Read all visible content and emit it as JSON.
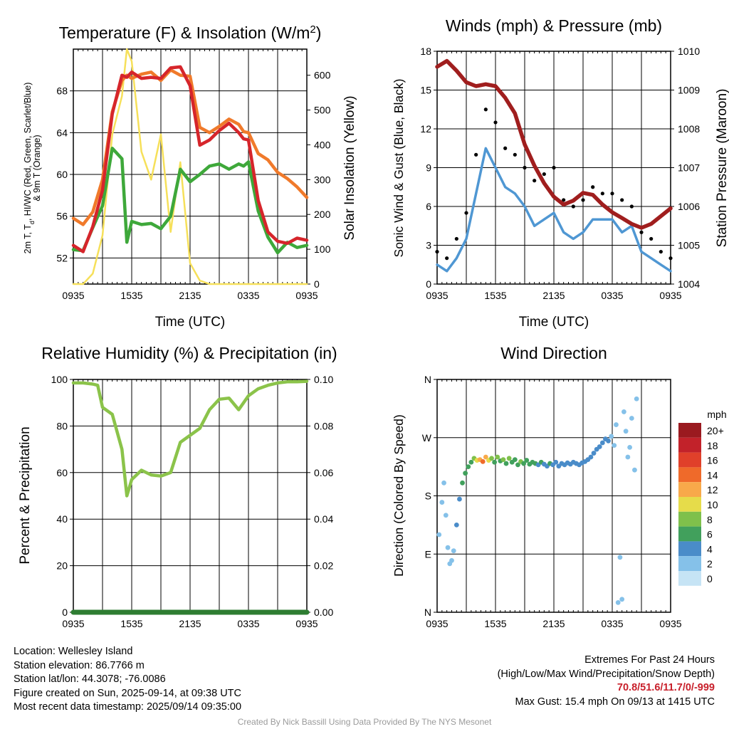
{
  "colors": {
    "temp": "#d6252b",
    "dewpoint": "#3ea83a",
    "t9m": "#f07a2b",
    "solar": "#f6e05a",
    "wind": "#4f97d3",
    "gust": "#000000",
    "pressure": "#a01e1e",
    "rh": "#8bc34a",
    "precip": "#2e7d32"
  },
  "footer": {
    "location": "Location: Wellesley Island",
    "elevation": "Station elevation: 86.7766 m",
    "latlon": "Station lat/lon: 44.3078; -76.0086",
    "created": "Figure created on Sun, 2025-09-14, at 09:38 UTC",
    "recent": "Most recent data timestamp: 2025/09/14 09:35:00",
    "extremes_title": "Extremes For Past 24 Hours",
    "extremes_legend": "(High/Low/Max Wind/Precipitation/Snow Depth)",
    "extremes_values": "70.8/51.6/11.7/0/-999",
    "max_gust": "Max Gust: 15.4 mph On 09/13 at 1415 UTC",
    "credit": "Created By Nick Bassill Using Data Provided By The NYS Mesonet"
  },
  "chart_data": [
    {
      "type": "line",
      "title": "Temperature (F) & Insolation (W/m²)",
      "xlabel": "Time (UTC)",
      "ylabel": "2m T, Td, HI/WC (Red, Green, Scarlet/Blue) & 9m T (Orange)",
      "y2label": "Solar Insolation (Yellow)",
      "x_ticks": [
        "0935",
        "1535",
        "2135",
        "0335",
        "0935"
      ],
      "ylim": [
        49.5,
        72
      ],
      "y_ticks": [
        52,
        56,
        60,
        64,
        68
      ],
      "y2lim": [
        0,
        675
      ],
      "y2_ticks": [
        0,
        100,
        200,
        300,
        400,
        500,
        600
      ],
      "grid": true,
      "x": [
        0,
        1,
        2,
        3,
        4,
        5,
        5.5,
        6,
        7,
        8,
        9,
        10,
        11,
        12,
        13,
        14,
        15,
        16,
        17,
        17.5,
        18,
        19,
        20,
        21,
        22,
        23,
        24
      ],
      "series": [
        {
          "key": "t9m",
          "values": [
            55.8,
            55.2,
            56.4,
            59.5,
            66.0,
            69.0,
            69.5,
            69.2,
            69.6,
            69.8,
            69.0,
            70.0,
            69.5,
            69.4,
            64.5,
            64.0,
            64.6,
            65.3,
            64.8,
            64.1,
            64.0,
            62.0,
            61.4,
            60.2,
            59.6,
            58.8,
            57.8
          ]
        },
        {
          "key": "temp",
          "values": [
            53.2,
            52.6,
            55.0,
            58.5,
            65.8,
            69.5,
            69.3,
            69.8,
            69.2,
            69.3,
            69.2,
            70.2,
            70.3,
            68.5,
            62.8,
            63.3,
            64.2,
            64.9,
            64.0,
            63.4,
            63.3,
            57.5,
            54.5,
            53.6,
            53.4,
            53.9,
            53.7
          ]
        },
        {
          "key": "dewpoint",
          "values": [
            52.8,
            52.7,
            54.9,
            57.0,
            62.5,
            61.5,
            53.5,
            55.5,
            55.2,
            55.3,
            54.8,
            56.0,
            60.5,
            59.3,
            60.0,
            60.8,
            61.0,
            60.5,
            61.0,
            60.8,
            61.2,
            56.5,
            54.0,
            52.5,
            53.5,
            53.0,
            53.2
          ]
        },
        {
          "key": "solar",
          "values": [
            0,
            0,
            30,
            140,
            430,
            540,
            675,
            640,
            380,
            300,
            430,
            150,
            350,
            60,
            10,
            0,
            0,
            0,
            0,
            0,
            0,
            0,
            0,
            0,
            0,
            0,
            0
          ]
        }
      ]
    },
    {
      "type": "line",
      "title": "Winds (mph) & Pressure (mb)",
      "xlabel": "Time (UTC)",
      "ylabel": "Sonic Wind & Gust (Blue, Black)",
      "y2label": "Station Pressure (Maroon)",
      "x_ticks": [
        "0935",
        "1535",
        "2135",
        "0335",
        "0935"
      ],
      "ylim": [
        0,
        18
      ],
      "y_ticks": [
        0,
        3,
        6,
        9,
        12,
        15,
        18
      ],
      "y2lim": [
        1004,
        1010
      ],
      "y2_ticks": [
        1004,
        1005,
        1006,
        1007,
        1008,
        1009,
        1010
      ],
      "grid": true,
      "x": [
        0,
        1,
        2,
        3,
        4,
        5,
        6,
        7,
        8,
        9,
        10,
        11,
        12,
        13,
        14,
        15,
        16,
        17,
        18,
        19,
        20,
        21,
        22,
        23,
        24
      ],
      "series": [
        {
          "key": "wind",
          "values": [
            1.5,
            1.0,
            2.0,
            3.5,
            7.0,
            10.5,
            9.0,
            7.5,
            7.0,
            6.0,
            4.5,
            5.0,
            5.5,
            4.0,
            3.5,
            4.0,
            5.0,
            5.0,
            5.0,
            4.0,
            4.5,
            2.5,
            2.0,
            1.5,
            1.0
          ]
        },
        {
          "key": "gust",
          "values": [
            2.5,
            2.0,
            3.5,
            5.5,
            10.0,
            13.5,
            12.5,
            10.5,
            10.0,
            9.0,
            8.0,
            8.5,
            9.0,
            6.5,
            6.0,
            6.5,
            7.5,
            7.0,
            7.0,
            6.5,
            6.0,
            4.0,
            3.5,
            2.5,
            2.0
          ]
        },
        {
          "key": "pressure",
          "values": [
            1009.6,
            1009.75,
            1009.5,
            1009.2,
            1009.1,
            1009.15,
            1009.1,
            1008.8,
            1008.4,
            1007.6,
            1007.05,
            1006.6,
            1006.25,
            1006.05,
            1006.15,
            1006.35,
            1006.3,
            1006.05,
            1005.85,
            1005.7,
            1005.55,
            1005.45,
            1005.55,
            1005.75,
            1005.95
          ]
        }
      ]
    },
    {
      "type": "line",
      "title": "Relative Humidity (%) & Precipitation (in)",
      "ylabel": "Percent & Precipitation",
      "x_ticks": [
        "0935",
        "1535",
        "2135",
        "0335",
        "0935"
      ],
      "ylim": [
        0,
        100
      ],
      "y_ticks": [
        0,
        20,
        40,
        60,
        80,
        100
      ],
      "y2lim": [
        0,
        0.1
      ],
      "y2_ticks": [
        "0.00",
        "0.02",
        "0.04",
        "0.06",
        "0.08",
        "0.10"
      ],
      "grid": true,
      "x": [
        0,
        1,
        2,
        2.5,
        3,
        4,
        5,
        5.5,
        6,
        7,
        8,
        9,
        10,
        11,
        12,
        13,
        14,
        15,
        16,
        17,
        18,
        19,
        20,
        21,
        22,
        23,
        24
      ],
      "series": [
        {
          "key": "rh",
          "values": [
            98.5,
            98.5,
            98.0,
            97.5,
            88.0,
            85.0,
            70.0,
            50.0,
            57.0,
            61.0,
            59.0,
            58.5,
            60.0,
            73.0,
            76.0,
            79.0,
            87.0,
            91.5,
            92.0,
            87.0,
            93.0,
            96.0,
            97.5,
            98.5,
            99.0,
            99.0,
            99.2
          ]
        },
        {
          "key": "precip",
          "values": [
            0,
            0,
            0,
            0,
            0,
            0,
            0,
            0,
            0,
            0,
            0,
            0,
            0,
            0,
            0,
            0,
            0,
            0,
            0,
            0,
            0,
            0,
            0,
            0,
            0,
            0,
            0
          ]
        }
      ]
    },
    {
      "type": "scatter",
      "title": "Wind Direction",
      "ylabel": "Direction (Colored By Speed)",
      "x_ticks": [
        "0935",
        "1535",
        "2135",
        "0335",
        "0935"
      ],
      "y_ticks": [
        "N",
        "E",
        "S",
        "W",
        "N"
      ],
      "ylim": [
        0,
        360
      ],
      "grid": true,
      "legend_title": "mph",
      "legend_labels": [
        "0",
        "2",
        "4",
        "6",
        "8",
        "10",
        "12",
        "14",
        "16",
        "18",
        "20+"
      ],
      "legend_colors": [
        "#c6e4f5",
        "#85c1e9",
        "#4a8cc9",
        "#41a05c",
        "#7fc04b",
        "#e6dc4a",
        "#f8a94a",
        "#ef6a2a",
        "#e0402a",
        "#c2222a",
        "#9a1a1f"
      ],
      "points": [
        {
          "x": 0.2,
          "y": 120,
          "s": 1
        },
        {
          "x": 0.5,
          "y": 170,
          "s": 1
        },
        {
          "x": 0.7,
          "y": 200,
          "s": 1
        },
        {
          "x": 0.9,
          "y": 150,
          "s": 1
        },
        {
          "x": 1.1,
          "y": 100,
          "s": 1
        },
        {
          "x": 1.3,
          "y": 75,
          "s": 1
        },
        {
          "x": 1.5,
          "y": 80,
          "s": 1
        },
        {
          "x": 1.7,
          "y": 95,
          "s": 1
        },
        {
          "x": 2.0,
          "y": 135,
          "s": 2
        },
        {
          "x": 2.3,
          "y": 175,
          "s": 2
        },
        {
          "x": 2.6,
          "y": 200,
          "s": 3
        },
        {
          "x": 2.9,
          "y": 215,
          "s": 3
        },
        {
          "x": 3.2,
          "y": 225,
          "s": 3
        },
        {
          "x": 3.5,
          "y": 232,
          "s": 3
        },
        {
          "x": 3.8,
          "y": 238,
          "s": 4
        },
        {
          "x": 4.1,
          "y": 235,
          "s": 5
        },
        {
          "x": 4.4,
          "y": 236,
          "s": 6
        },
        {
          "x": 4.7,
          "y": 233,
          "s": 7
        },
        {
          "x": 5.0,
          "y": 240,
          "s": 6
        },
        {
          "x": 5.3,
          "y": 235,
          "s": 5
        },
        {
          "x": 5.6,
          "y": 238,
          "s": 4
        },
        {
          "x": 5.9,
          "y": 232,
          "s": 3
        },
        {
          "x": 6.2,
          "y": 240,
          "s": 4
        },
        {
          "x": 6.5,
          "y": 234,
          "s": 3
        },
        {
          "x": 6.8,
          "y": 236,
          "s": 4
        },
        {
          "x": 7.1,
          "y": 230,
          "s": 3
        },
        {
          "x": 7.4,
          "y": 238,
          "s": 4
        },
        {
          "x": 7.7,
          "y": 232,
          "s": 3
        },
        {
          "x": 8.0,
          "y": 236,
          "s": 3
        },
        {
          "x": 8.3,
          "y": 228,
          "s": 3
        },
        {
          "x": 8.6,
          "y": 233,
          "s": 4
        },
        {
          "x": 8.9,
          "y": 230,
          "s": 3
        },
        {
          "x": 9.2,
          "y": 235,
          "s": 3
        },
        {
          "x": 9.5,
          "y": 229,
          "s": 3
        },
        {
          "x": 9.8,
          "y": 232,
          "s": 3
        },
        {
          "x": 10.1,
          "y": 230,
          "s": 3
        },
        {
          "x": 10.4,
          "y": 228,
          "s": 2
        },
        {
          "x": 10.7,
          "y": 232,
          "s": 3
        },
        {
          "x": 11.0,
          "y": 229,
          "s": 2
        },
        {
          "x": 11.3,
          "y": 226,
          "s": 2
        },
        {
          "x": 11.6,
          "y": 230,
          "s": 3
        },
        {
          "x": 11.9,
          "y": 228,
          "s": 2
        },
        {
          "x": 12.2,
          "y": 232,
          "s": 2
        },
        {
          "x": 12.5,
          "y": 226,
          "s": 2
        },
        {
          "x": 12.8,
          "y": 230,
          "s": 2
        },
        {
          "x": 13.1,
          "y": 228,
          "s": 2
        },
        {
          "x": 13.4,
          "y": 231,
          "s": 2
        },
        {
          "x": 13.7,
          "y": 229,
          "s": 2
        },
        {
          "x": 14.0,
          "y": 232,
          "s": 2
        },
        {
          "x": 14.3,
          "y": 230,
          "s": 2
        },
        {
          "x": 14.6,
          "y": 228,
          "s": 2
        },
        {
          "x": 14.9,
          "y": 231,
          "s": 2
        },
        {
          "x": 15.2,
          "y": 233,
          "s": 2
        },
        {
          "x": 15.5,
          "y": 236,
          "s": 2
        },
        {
          "x": 15.8,
          "y": 240,
          "s": 2
        },
        {
          "x": 16.1,
          "y": 246,
          "s": 2
        },
        {
          "x": 16.4,
          "y": 252,
          "s": 2
        },
        {
          "x": 16.7,
          "y": 256,
          "s": 2
        },
        {
          "x": 17.0,
          "y": 262,
          "s": 2
        },
        {
          "x": 17.3,
          "y": 268,
          "s": 2
        },
        {
          "x": 17.6,
          "y": 265,
          "s": 2
        },
        {
          "x": 17.9,
          "y": 272,
          "s": 1
        },
        {
          "x": 18.2,
          "y": 258,
          "s": 1
        },
        {
          "x": 18.4,
          "y": 290,
          "s": 1
        },
        {
          "x": 18.6,
          "y": 15,
          "s": 1
        },
        {
          "x": 18.8,
          "y": 85,
          "s": 1
        },
        {
          "x": 19.0,
          "y": 20,
          "s": 1
        },
        {
          "x": 19.2,
          "y": 310,
          "s": 1
        },
        {
          "x": 19.4,
          "y": 280,
          "s": 1
        },
        {
          "x": 19.6,
          "y": 240,
          "s": 1
        },
        {
          "x": 19.8,
          "y": 255,
          "s": 1
        },
        {
          "x": 20.0,
          "y": 300,
          "s": 1
        },
        {
          "x": 20.3,
          "y": 220,
          "s": 1
        },
        {
          "x": 20.5,
          "y": 330,
          "s": 1
        }
      ]
    }
  ]
}
